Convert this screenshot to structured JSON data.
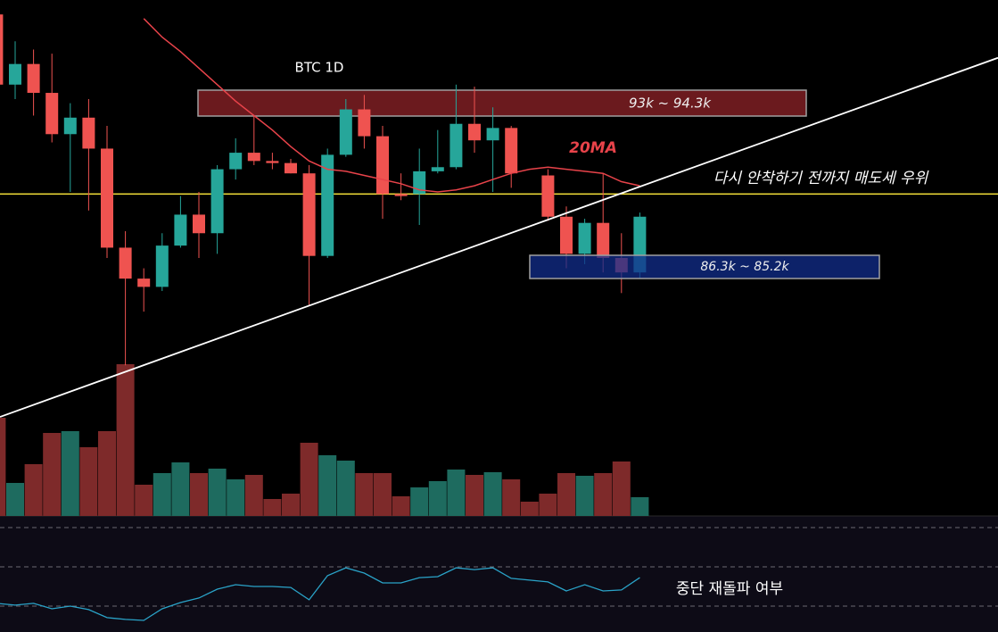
{
  "chart_data": {
    "type": "candlestick",
    "title": "BTC 1D",
    "zone_labels": [
      "93k ~ 94.3k",
      "86.3k ~ 85.2k"
    ],
    "annotations": [
      "다시 안착하기 전까지 매도세 우위",
      "중단 재돌파 여부"
    ],
    "ylim": [
      73.7,
      98.7
    ],
    "open": [
      98.0,
      94.6,
      95.6,
      94.2,
      92.2,
      93.0,
      91.5,
      86.7,
      85.2,
      84.8,
      86.8,
      88.3,
      87.4,
      90.5,
      91.3,
      90.9,
      90.8,
      90.3,
      86.3,
      91.2,
      93.4,
      92.1,
      89.3,
      89.3,
      90.4,
      90.6,
      92.7,
      91.9,
      92.5,
      null,
      90.2,
      88.2,
      86.4,
      87.9,
      86.2,
      85.5
    ],
    "high": [
      98.7,
      96.7,
      96.3,
      96.1,
      93.7,
      93.9,
      92.6,
      87.5,
      85.7,
      87.4,
      89.2,
      89.4,
      90.7,
      92.0,
      93.1,
      91.3,
      91.0,
      90.7,
      91.5,
      93.9,
      94.1,
      92.6,
      90.3,
      91.5,
      92.4,
      94.6,
      94.5,
      93.5,
      92.6,
      null,
      90.5,
      88.7,
      88.1,
      90.3,
      87.4,
      88.4
    ],
    "low": [
      94.6,
      93.9,
      93.1,
      91.8,
      89.4,
      88.5,
      86.2,
      81.0,
      83.6,
      84.6,
      86.7,
      86.2,
      86.4,
      90.0,
      90.7,
      90.5,
      90.3,
      83.9,
      86.2,
      91.1,
      91.5,
      88.1,
      89.0,
      87.8,
      90.3,
      90.5,
      91.3,
      89.4,
      89.6,
      null,
      88.0,
      85.7,
      85.9,
      85.5,
      84.5,
      85.2
    ],
    "close": [
      94.6,
      95.6,
      94.2,
      92.2,
      93.0,
      91.5,
      86.7,
      85.2,
      84.8,
      86.8,
      88.3,
      87.4,
      90.5,
      91.3,
      90.9,
      90.8,
      90.3,
      86.3,
      91.2,
      93.4,
      92.1,
      89.3,
      89.2,
      90.4,
      90.6,
      92.7,
      91.9,
      92.5,
      90.3,
      null,
      88.2,
      86.4,
      87.9,
      86.2,
      85.5,
      88.2
    ],
    "up_color": "#26a69a",
    "down_color": "#ef5350",
    "ma": {
      "name": "20MA",
      "color": "#e8434a",
      "values": [
        null,
        null,
        null,
        null,
        null,
        null,
        null,
        null,
        97.8,
        96.9,
        96.2,
        95.4,
        94.6,
        93.8,
        93.1,
        92.4,
        91.6,
        90.9,
        90.5,
        90.4,
        90.2,
        90.0,
        89.8,
        89.5,
        89.4,
        89.5,
        89.7,
        90.0,
        90.3,
        90.5,
        90.6,
        90.5,
        90.4,
        90.3,
        89.9,
        89.7
      ]
    },
    "hline": {
      "value": 89.3,
      "color": "#ffeb3b"
    },
    "trendline": {
      "values": [
        78.5,
        95.9
      ],
      "color": "#ffffff"
    },
    "volume": {
      "values": [
        110,
        37,
        58,
        93,
        95,
        77,
        95,
        170,
        35,
        48,
        60,
        48,
        53,
        41,
        46,
        19,
        25,
        82,
        68,
        62,
        48,
        48,
        22,
        32,
        39,
        52,
        46,
        49,
        41,
        16,
        25,
        48,
        45,
        48,
        61,
        21
      ],
      "ylim": [
        0,
        170
      ],
      "up_color": "#1e6b5f",
      "down_color": "#7e2a2a"
    },
    "rsi": {
      "values": [
        31.4,
        30.5,
        31.4,
        28.6,
        30.0,
        28.2,
        24.1,
        23.2,
        22.7,
        28.6,
        31.8,
        34.1,
        38.6,
        40.9,
        40.0,
        40.0,
        39.5,
        33.2,
        45.5,
        49.5,
        46.8,
        41.8,
        41.8,
        44.5,
        45.0,
        49.5,
        48.6,
        49.5,
        44.1,
        43.2,
        42.3,
        37.7,
        40.9,
        37.7,
        38.2,
        44.5
      ],
      "ylim": [
        16.8,
        75.9
      ],
      "levels": [
        70,
        50,
        30
      ],
      "color": "#2aa3c8"
    }
  }
}
